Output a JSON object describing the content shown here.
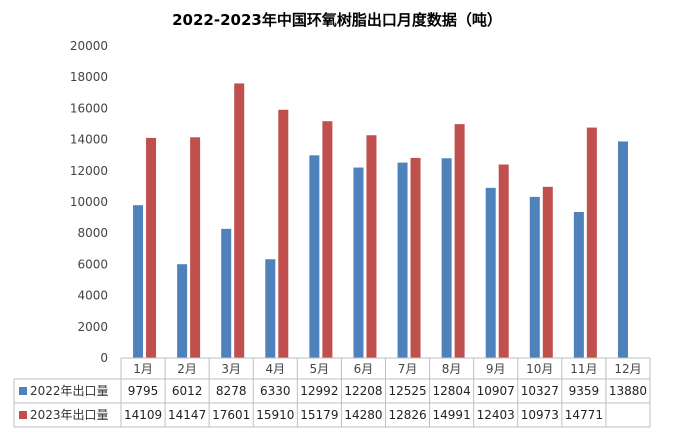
{
  "chart_data": {
    "type": "bar",
    "title": "2022-2023年中国环氧树脂出口月度数据（吨）",
    "categories": [
      "1月",
      "2月",
      "3月",
      "4月",
      "5月",
      "6月",
      "7月",
      "8月",
      "9月",
      "10月",
      "11月",
      "12月"
    ],
    "series": [
      {
        "name": "2022年出口量",
        "color": "#4F81BD",
        "values": [
          9795,
          6012,
          8278,
          6330,
          12992,
          12208,
          12525,
          12804,
          10907,
          10327,
          9359,
          13880
        ]
      },
      {
        "name": "2023年出口量",
        "color": "#C0504D",
        "values": [
          14109,
          14147,
          17601,
          15910,
          15179,
          14280,
          12826,
          14991,
          12403,
          10973,
          14771,
          null
        ]
      }
    ],
    "ylim": [
      0,
      20000
    ],
    "yticks": [
      0,
      2000,
      4000,
      6000,
      8000,
      10000,
      12000,
      14000,
      16000,
      18000,
      20000
    ],
    "xlabel": "",
    "ylabel": "",
    "grid": false,
    "legend": "data-table-left"
  }
}
